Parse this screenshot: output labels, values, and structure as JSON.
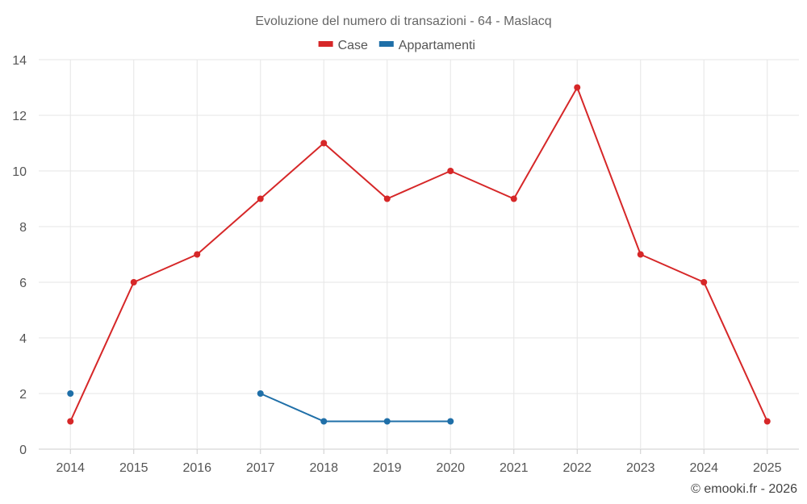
{
  "chart_data": {
    "type": "line",
    "title": "Evoluzione del numero di transazioni - 64 - Maslacq",
    "categories": [
      "2014",
      "2015",
      "2016",
      "2017",
      "2018",
      "2019",
      "2020",
      "2021",
      "2022",
      "2023",
      "2024",
      "2025"
    ],
    "ylim": [
      0,
      14
    ],
    "yticks": [
      0,
      2,
      4,
      6,
      8,
      10,
      12,
      14
    ],
    "grid": true,
    "legend_position": "top-center",
    "series": [
      {
        "name": "Case",
        "color": "#d62728",
        "values": [
          1,
          6,
          7,
          9,
          11,
          9,
          10,
          9,
          13,
          7,
          6,
          1
        ]
      },
      {
        "name": "Appartamenti",
        "color": "#1f6fa8",
        "values": [
          2,
          null,
          null,
          2,
          1,
          1,
          1,
          null,
          null,
          null,
          null,
          null
        ]
      }
    ]
  },
  "credit": "© emooki.fr - 2026"
}
